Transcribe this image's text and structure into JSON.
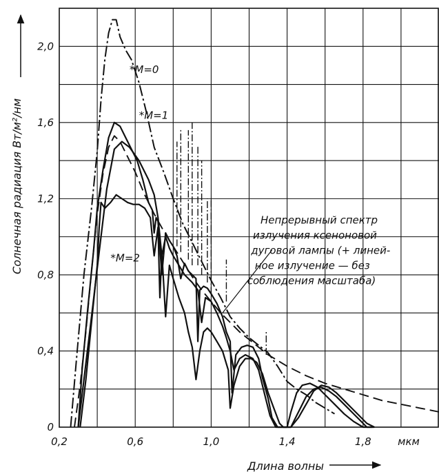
{
  "chart_data": {
    "type": "line",
    "xlabel": "Длина волны",
    "ylabel": "Солнечная  радиация Вт/м²/нм",
    "x_unit": "мкм",
    "xlim": [
      0.2,
      2.2
    ],
    "ylim": [
      0,
      2.2
    ],
    "x_ticks": [
      "0,2",
      "0,6",
      "1,0",
      "1,4",
      "1,8"
    ],
    "x_tick_values": [
      0.2,
      0.6,
      1.0,
      1.4,
      1.8
    ],
    "y_ticks": [
      "0",
      "0,4",
      "0,8",
      "1,2",
      "1,6",
      "2,0"
    ],
    "y_tick_values": [
      0,
      0.4,
      0.8,
      1.2,
      1.6,
      2.0
    ],
    "grid": true,
    "series": [
      {
        "name": "*M=0",
        "style": "dash-dot",
        "x": [
          0.26,
          0.29,
          0.33,
          0.37,
          0.4,
          0.42,
          0.44,
          0.46,
          0.48,
          0.5,
          0.52,
          0.55,
          0.58,
          0.62,
          0.66,
          0.7,
          0.75,
          0.8,
          0.85,
          0.9,
          0.95,
          1.0,
          1.05,
          1.1,
          1.15,
          1.2,
          1.25,
          1.3,
          1.35,
          1.4,
          1.45,
          1.5,
          1.55,
          1.6,
          1.65
        ],
        "y": [
          0.0,
          0.35,
          0.8,
          1.15,
          1.45,
          1.72,
          1.93,
          2.07,
          2.14,
          2.14,
          2.05,
          1.98,
          1.93,
          1.81,
          1.65,
          1.47,
          1.34,
          1.2,
          1.07,
          0.97,
          0.87,
          0.77,
          0.68,
          0.58,
          0.52,
          0.47,
          0.43,
          0.39,
          0.32,
          0.24,
          0.2,
          0.17,
          0.13,
          0.1,
          0.07
        ]
      },
      {
        "name": "*M=1",
        "style": "solid",
        "x": [
          0.3,
          0.32,
          0.35,
          0.38,
          0.4,
          0.43,
          0.46,
          0.49,
          0.52,
          0.55,
          0.58,
          0.61,
          0.64,
          0.67,
          0.69,
          0.7,
          0.71,
          0.72,
          0.74,
          0.76,
          0.78,
          0.8,
          0.82,
          0.84,
          0.86,
          0.88,
          0.9,
          0.92,
          0.93,
          0.94,
          0.96,
          0.98,
          1.0,
          1.03,
          1.06,
          1.08,
          1.1,
          1.11,
          1.13,
          1.16,
          1.19,
          1.22,
          1.25,
          1.27,
          1.3,
          1.32,
          1.35,
          1.37,
          1.4,
          1.42,
          1.45,
          1.48,
          1.52,
          1.56,
          1.6,
          1.65,
          1.7,
          1.75,
          1.8,
          1.85
        ],
        "y": [
          0.0,
          0.3,
          0.62,
          0.92,
          1.15,
          1.35,
          1.52,
          1.6,
          1.58,
          1.52,
          1.46,
          1.4,
          1.3,
          1.18,
          1.14,
          1.02,
          1.1,
          1.08,
          0.8,
          1.02,
          0.98,
          0.95,
          0.9,
          0.78,
          0.86,
          0.82,
          0.8,
          0.78,
          0.45,
          0.72,
          0.74,
          0.73,
          0.7,
          0.65,
          0.58,
          0.5,
          0.45,
          0.18,
          0.38,
          0.42,
          0.43,
          0.42,
          0.36,
          0.26,
          0.15,
          0.05,
          0.0,
          0.0,
          0.0,
          0.08,
          0.18,
          0.22,
          0.23,
          0.21,
          0.17,
          0.12,
          0.07,
          0.03,
          0.0,
          0.0
        ]
      },
      {
        "name": "",
        "style": "solid",
        "x": [
          0.3,
          0.33,
          0.37,
          0.41,
          0.45,
          0.49,
          0.53,
          0.57,
          0.62,
          0.67,
          0.7,
          0.72,
          0.74,
          0.76,
          0.78,
          0.8,
          0.83,
          0.86,
          0.9,
          0.93,
          0.95,
          0.97,
          1.0,
          1.03,
          1.06,
          1.08,
          1.1,
          1.12,
          1.15,
          1.18,
          1.22,
          1.25,
          1.28,
          1.31,
          1.34,
          1.38,
          1.42,
          1.46,
          1.5,
          1.54,
          1.58,
          1.62,
          1.66,
          1.7,
          1.74,
          1.78,
          1.82,
          1.86
        ],
        "y": [
          0.0,
          0.25,
          0.58,
          0.92,
          1.25,
          1.46,
          1.5,
          1.47,
          1.4,
          1.3,
          1.22,
          1.1,
          0.9,
          1.0,
          0.94,
          0.9,
          0.85,
          0.8,
          0.76,
          0.72,
          0.55,
          0.68,
          0.66,
          0.6,
          0.53,
          0.47,
          0.4,
          0.3,
          0.36,
          0.38,
          0.36,
          0.3,
          0.18,
          0.06,
          0.0,
          0.0,
          0.0,
          0.05,
          0.12,
          0.19,
          0.22,
          0.21,
          0.18,
          0.14,
          0.1,
          0.06,
          0.02,
          0.0
        ]
      },
      {
        "name": "*M=2",
        "style": "solid",
        "x": [
          0.31,
          0.34,
          0.37,
          0.4,
          0.41,
          0.42,
          0.44,
          0.47,
          0.5,
          0.53,
          0.56,
          0.59,
          0.62,
          0.65,
          0.68,
          0.7,
          0.72,
          0.73,
          0.74,
          0.76,
          0.78,
          0.8,
          0.83,
          0.86,
          0.88,
          0.9,
          0.92,
          0.94,
          0.96,
          0.98,
          1.0,
          1.03,
          1.06,
          1.09,
          1.1,
          1.12,
          1.15,
          1.18,
          1.21,
          1.24,
          1.27,
          1.3,
          1.33,
          1.36,
          1.38,
          1.4,
          1.42,
          1.44,
          1.47,
          1.5,
          1.54,
          1.58,
          1.62,
          1.66,
          1.7,
          1.74,
          1.78,
          1.82,
          1.86
        ],
        "y": [
          0.0,
          0.25,
          0.55,
          0.85,
          1.05,
          1.18,
          1.15,
          1.18,
          1.22,
          1.2,
          1.18,
          1.17,
          1.17,
          1.15,
          1.1,
          0.9,
          1.05,
          0.68,
          0.92,
          0.58,
          0.85,
          0.78,
          0.68,
          0.6,
          0.5,
          0.42,
          0.25,
          0.4,
          0.5,
          0.52,
          0.5,
          0.45,
          0.4,
          0.3,
          0.1,
          0.22,
          0.32,
          0.36,
          0.36,
          0.34,
          0.28,
          0.18,
          0.1,
          0.02,
          0.0,
          0.0,
          0.0,
          0.04,
          0.1,
          0.16,
          0.2,
          0.21,
          0.19,
          0.16,
          0.12,
          0.08,
          0.04,
          0.0,
          0.0
        ]
      },
      {
        "name": "Непрерывный спектр излучения ксеноновой дуговой лампы",
        "style": "dashed",
        "x": [
          0.28,
          0.31,
          0.34,
          0.37,
          0.4,
          0.43,
          0.46,
          0.49,
          0.52,
          0.55,
          0.6,
          0.65,
          0.7,
          0.75,
          0.8,
          0.85,
          0.9,
          0.95,
          1.0,
          1.05,
          1.1,
          1.15,
          1.2,
          1.3,
          1.4,
          1.5,
          1.6,
          1.7,
          1.8,
          1.9,
          2.0,
          2.1,
          2.2
        ],
        "y": [
          0.0,
          0.22,
          0.5,
          0.82,
          1.12,
          1.33,
          1.47,
          1.53,
          1.5,
          1.44,
          1.34,
          1.22,
          1.12,
          1.03,
          0.95,
          0.87,
          0.79,
          0.72,
          0.66,
          0.6,
          0.55,
          0.5,
          0.46,
          0.38,
          0.32,
          0.27,
          0.23,
          0.2,
          0.17,
          0.14,
          0.12,
          0.1,
          0.08
        ]
      }
    ],
    "xenon_lines": [
      {
        "x": 0.82,
        "y0": 0.95,
        "y1": 1.5
      },
      {
        "x": 0.84,
        "y0": 0.92,
        "y1": 1.56
      },
      {
        "x": 0.88,
        "y0": 0.88,
        "y1": 1.56
      },
      {
        "x": 0.9,
        "y0": 0.85,
        "y1": 1.6
      },
      {
        "x": 0.93,
        "y0": 0.85,
        "y1": 1.48
      },
      {
        "x": 0.95,
        "y0": 0.8,
        "y1": 1.4
      },
      {
        "x": 0.98,
        "y0": 0.76,
        "y1": 1.2
      },
      {
        "x": 1.0,
        "y0": 0.7,
        "y1": 1.2
      },
      {
        "x": 1.08,
        "y0": 0.66,
        "y1": 0.88
      },
      {
        "x": 1.29,
        "y0": 0.38,
        "y1": 0.5
      }
    ],
    "annotations": [
      {
        "text": "*M=0",
        "x": 0.57,
        "y": 1.86
      },
      {
        "text": "*M=1",
        "x": 0.62,
        "y": 1.62
      },
      {
        "text": "*M=2",
        "x": 0.47,
        "y": 0.87
      },
      {
        "text": "Непрерывный  спектр",
        "x": 1.26,
        "y": 1.07
      },
      {
        "text": "излучения  ксеноновой",
        "x": 1.22,
        "y": 0.99
      },
      {
        "text": "дуговой лампы (+ линей-",
        "x": 1.21,
        "y": 0.91
      },
      {
        "text": "ное излучение — без",
        "x": 1.23,
        "y": 0.83
      },
      {
        "text": "соблюдения масштаба)",
        "x": 1.19,
        "y": 0.75
      }
    ]
  }
}
